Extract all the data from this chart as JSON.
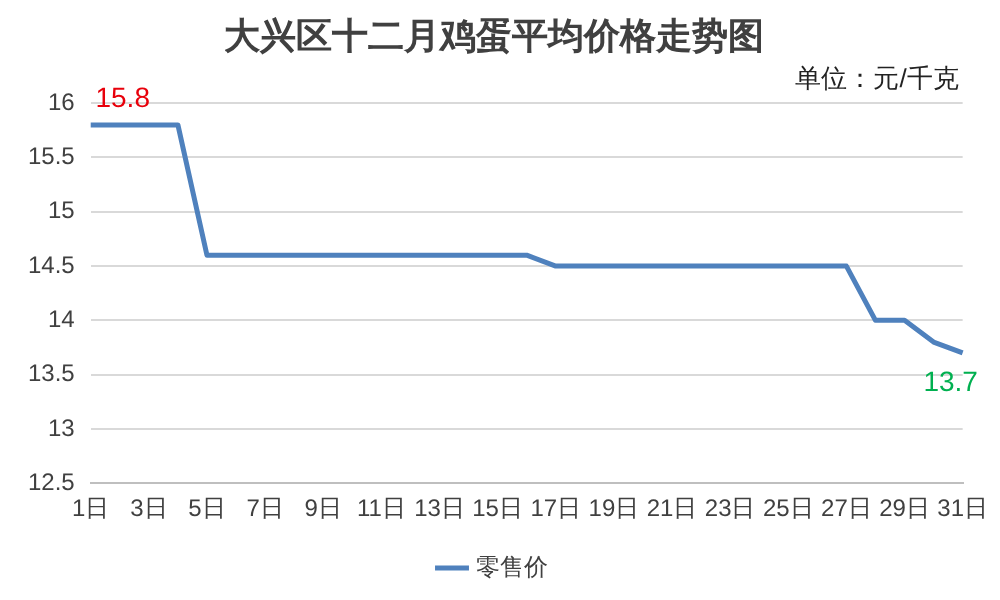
{
  "chart_data": {
    "type": "line",
    "title": "大兴区十二月鸡蛋平均价格走势图",
    "annotations": [
      "单位：元/千克"
    ],
    "categories": [
      "1日",
      null,
      "3日",
      null,
      "5日",
      null,
      "7日",
      null,
      "9日",
      null,
      "11日",
      null,
      "13日",
      null,
      "15日",
      null,
      "17日",
      null,
      "19日",
      null,
      "21日",
      null,
      "23日",
      null,
      "25日",
      null,
      "27日",
      null,
      "29日",
      null,
      "31日"
    ],
    "series": [
      {
        "name": "零售价",
        "color": "#4f81bd",
        "values": [
          15.8,
          15.8,
          15.8,
          15.8,
          14.6,
          14.6,
          14.6,
          14.6,
          14.6,
          14.6,
          14.6,
          14.6,
          14.6,
          14.6,
          14.6,
          14.6,
          14.5,
          14.5,
          14.5,
          14.5,
          14.5,
          14.5,
          14.5,
          14.5,
          14.5,
          14.5,
          14.5,
          14.0,
          14.0,
          13.8,
          13.7
        ],
        "value_labels": [
          "15.8",
          null,
          null,
          null,
          null,
          null,
          null,
          null,
          null,
          null,
          null,
          null,
          null,
          null,
          null,
          null,
          null,
          null,
          null,
          null,
          null,
          null,
          null,
          null,
          null,
          null,
          null,
          null,
          null,
          null,
          "13.7"
        ]
      }
    ],
    "ylim": [
      12.5,
      16
    ],
    "yticks": [
      12.5,
      13,
      13.5,
      14,
      14.5,
      15,
      15.5,
      16
    ],
    "grid": "y",
    "legend": "bottom",
    "marker": "none",
    "line_style": "solid"
  }
}
